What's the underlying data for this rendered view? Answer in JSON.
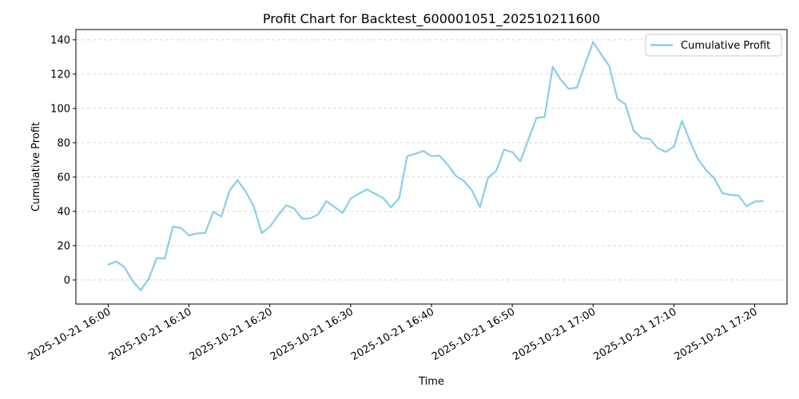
{
  "chart_data": {
    "type": "line",
    "title": "Profit Chart for Backtest_600001051_202510211600",
    "xlabel": "Time",
    "ylabel": "Cumulative Profit",
    "ylim": [
      -14,
      146
    ],
    "xlim": [
      "2025-10-21 15:56",
      "2025-10-21 17:24"
    ],
    "y_ticks": [
      0,
      20,
      40,
      60,
      80,
      100,
      120,
      140
    ],
    "x_ticks": [
      "2025-10-21 16:00",
      "2025-10-21 16:10",
      "2025-10-21 16:20",
      "2025-10-21 16:30",
      "2025-10-21 16:40",
      "2025-10-21 16:50",
      "2025-10-21 17:00",
      "2025-10-21 17:10",
      "2025-10-21 17:20"
    ],
    "grid": "horizontal dashed",
    "legend_position": "top-right",
    "series": [
      {
        "name": "Cumulative Profit",
        "color": "#87ceeb",
        "x": [
          "2025-10-21 16:00",
          "2025-10-21 16:01",
          "2025-10-21 16:02",
          "2025-10-21 16:03",
          "2025-10-21 16:04",
          "2025-10-21 16:05",
          "2025-10-21 16:06",
          "2025-10-21 16:07",
          "2025-10-21 16:08",
          "2025-10-21 16:09",
          "2025-10-21 16:10",
          "2025-10-21 16:11",
          "2025-10-21 16:12",
          "2025-10-21 16:13",
          "2025-10-21 16:14",
          "2025-10-21 16:15",
          "2025-10-21 16:16",
          "2025-10-21 16:17",
          "2025-10-21 16:18",
          "2025-10-21 16:19",
          "2025-10-21 16:20",
          "2025-10-21 16:21",
          "2025-10-21 16:22",
          "2025-10-21 16:23",
          "2025-10-21 16:24",
          "2025-10-21 16:25",
          "2025-10-21 16:26",
          "2025-10-21 16:27",
          "2025-10-21 16:28",
          "2025-10-21 16:29",
          "2025-10-21 16:30",
          "2025-10-21 16:31",
          "2025-10-21 16:32",
          "2025-10-21 16:33",
          "2025-10-21 16:34",
          "2025-10-21 16:35",
          "2025-10-21 16:36",
          "2025-10-21 16:37",
          "2025-10-21 16:38",
          "2025-10-21 16:39",
          "2025-10-21 16:40",
          "2025-10-21 16:41",
          "2025-10-21 16:42",
          "2025-10-21 16:43",
          "2025-10-21 16:44",
          "2025-10-21 16:45",
          "2025-10-21 16:46",
          "2025-10-21 16:47",
          "2025-10-21 16:48",
          "2025-10-21 16:49",
          "2025-10-21 16:50",
          "2025-10-21 16:51",
          "2025-10-21 16:52",
          "2025-10-21 16:53",
          "2025-10-21 16:54",
          "2025-10-21 16:55",
          "2025-10-21 16:56",
          "2025-10-21 16:57",
          "2025-10-21 16:58",
          "2025-10-21 16:59",
          "2025-10-21 17:00",
          "2025-10-21 17:01",
          "2025-10-21 17:02",
          "2025-10-21 17:03",
          "2025-10-21 17:04",
          "2025-10-21 17:05",
          "2025-10-21 17:06",
          "2025-10-21 17:07",
          "2025-10-21 17:08",
          "2025-10-21 17:09",
          "2025-10-21 17:10",
          "2025-10-21 17:11",
          "2025-10-21 17:12",
          "2025-10-21 17:13",
          "2025-10-21 17:14",
          "2025-10-21 17:15",
          "2025-10-21 17:16",
          "2025-10-21 17:17",
          "2025-10-21 17:18",
          "2025-10-21 17:19",
          "2025-10-21 17:20",
          "2025-10-21 17:21"
        ],
        "values": [
          9,
          10.8,
          7.5,
          -0.5,
          -6,
          0.5,
          12.8,
          12.5,
          31.2,
          30.3,
          26,
          27.2,
          27.4,
          39.8,
          37,
          52,
          58.3,
          51.7,
          43,
          27.4,
          31,
          37.6,
          43.5,
          41.7,
          35.7,
          35.9,
          38.4,
          46,
          42.5,
          39.1,
          47.4,
          50.2,
          52.8,
          50.3,
          47.9,
          42.3,
          47.7,
          72.2,
          73.6,
          75.2,
          72.2,
          72.5,
          67.3,
          60.8,
          57.8,
          52.3,
          42.5,
          59.6,
          63.5,
          76,
          74.5,
          69.2,
          82,
          94.5,
          95,
          124.2,
          116.7,
          111.4,
          112.2,
          125.7,
          138.7,
          131.6,
          124.8,
          105.7,
          102.5,
          87.3,
          82.7,
          82.3,
          76.9,
          74.6,
          77.8,
          92.8,
          80.8,
          70.3,
          64,
          59.3,
          50.6,
          49.6,
          49.2,
          43,
          45.7,
          46
        ]
      }
    ]
  }
}
